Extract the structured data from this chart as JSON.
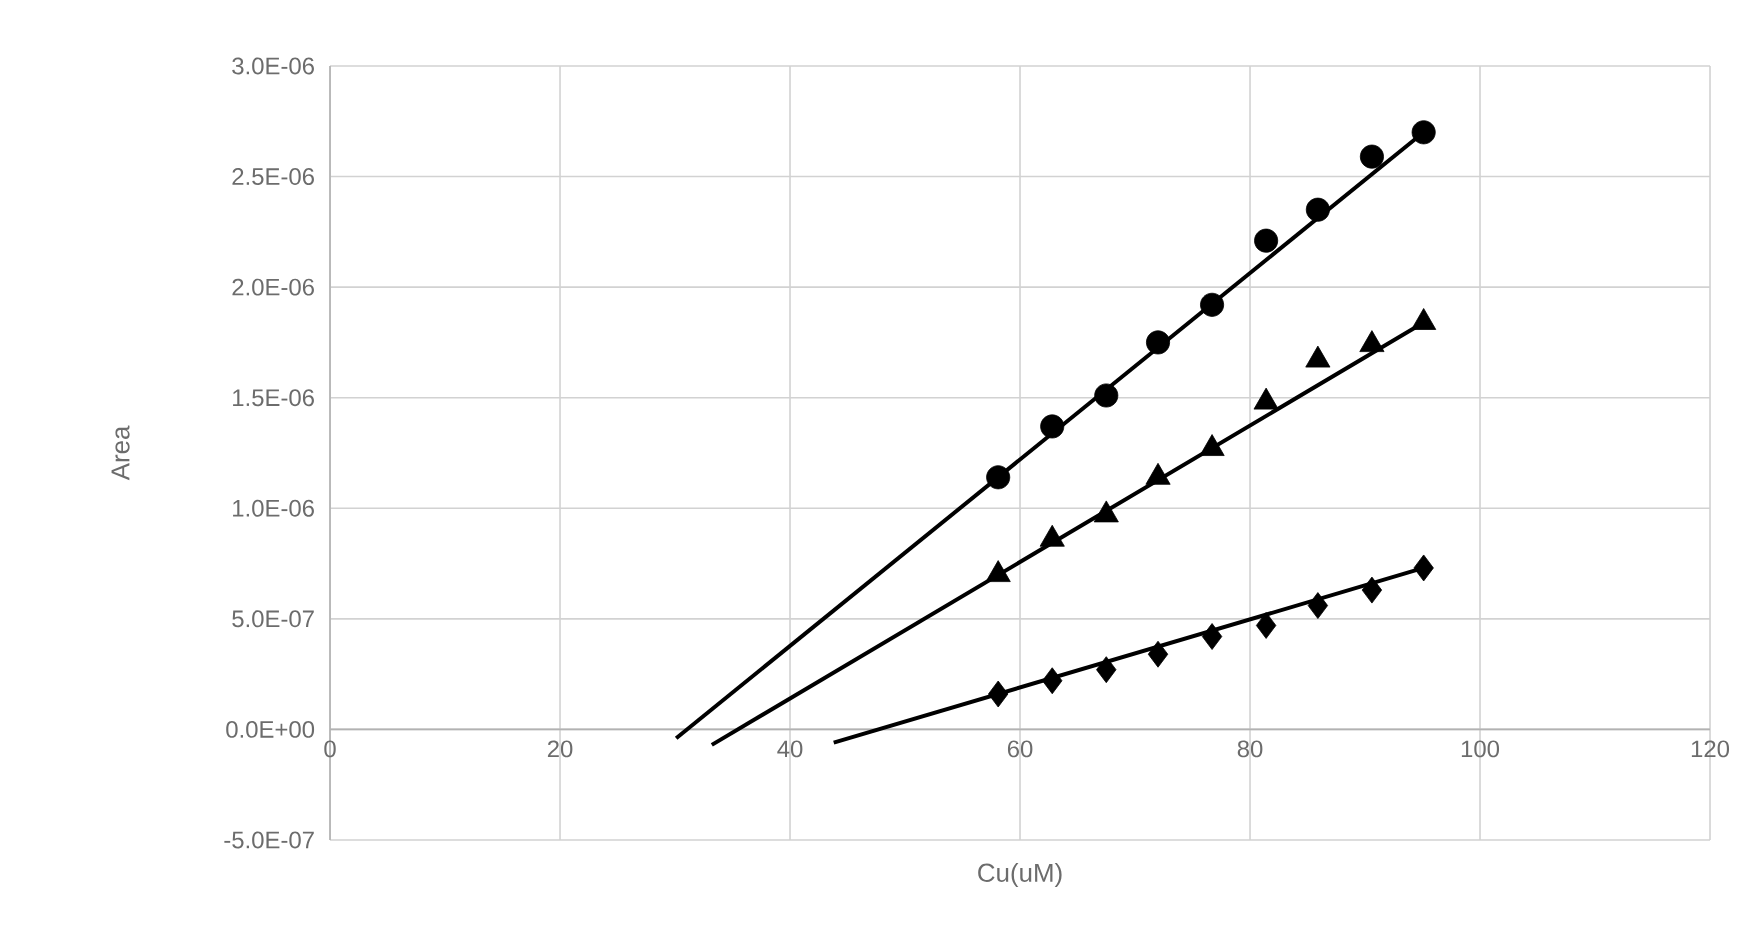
{
  "chart_data": {
    "type": "scatter",
    "xlabel": "Cu(uM)",
    "ylabel": "Area",
    "xlim": [
      0,
      120
    ],
    "xticks": [
      0,
      20,
      40,
      60,
      80,
      100,
      120
    ],
    "ylim": [
      -5e-07,
      3e-06
    ],
    "yticks": [
      {
        "value": -5e-07,
        "label": "-5.0E-07"
      },
      {
        "value": 0,
        "label": "0.0E+00"
      },
      {
        "value": 5e-07,
        "label": "5.0E-07"
      },
      {
        "value": 1e-06,
        "label": "1.0E-06"
      },
      {
        "value": 1.5e-06,
        "label": "1.5E-06"
      },
      {
        "value": 2e-06,
        "label": "2.0E-06"
      },
      {
        "value": 2.5e-06,
        "label": "2.5E-06"
      },
      {
        "value": 3e-06,
        "label": "3.0E-06"
      }
    ],
    "grid": true,
    "series": [
      {
        "color": "#000000",
        "marker": "circle",
        "x": [
          58.1,
          62.8,
          67.5,
          72.0,
          76.7,
          81.4,
          85.9,
          90.6,
          95.1
        ],
        "values": [
          1.14e-06,
          1.37e-06,
          1.51e-06,
          1.75e-06,
          1.92e-06,
          2.21e-06,
          2.35e-06,
          2.59e-06,
          2.7e-06
        ]
      },
      {
        "color": "#000000",
        "marker": "triangle",
        "x": [
          58.1,
          62.8,
          67.5,
          72.0,
          76.7,
          81.4,
          85.9,
          90.6,
          95.1
        ],
        "values": [
          7e-07,
          8.6e-07,
          9.7e-07,
          1.14e-06,
          1.27e-06,
          1.48e-06,
          1.67e-06,
          1.74e-06,
          1.84e-06
        ]
      },
      {
        "color": "#000000",
        "marker": "diamond",
        "x": [
          58.1,
          62.8,
          67.5,
          72.0,
          76.7,
          81.4,
          85.9,
          90.6,
          95.1
        ],
        "values": [
          1.6e-07,
          2.2e-07,
          2.7e-07,
          3.4e-07,
          4.2e-07,
          4.7e-07,
          5.6e-07,
          6.3e-07,
          7.3e-07
        ]
      },
      {
        "type": "line",
        "color": "#000000",
        "marker": "none",
        "line_style": "solid",
        "x": [
          30.1,
          95.1
        ],
        "values": [
          -4e-08,
          2.7e-06
        ]
      },
      {
        "type": "line",
        "color": "#000000",
        "marker": "none",
        "line_style": "solid",
        "x": [
          33.2,
          95.1
        ],
        "values": [
          -7e-08,
          1.84e-06
        ]
      },
      {
        "type": "line",
        "color": "#000000",
        "marker": "none",
        "line_style": "solid",
        "x": [
          43.8,
          95.1
        ],
        "values": [
          -6e-08,
          7.3e-07
        ]
      }
    ]
  }
}
